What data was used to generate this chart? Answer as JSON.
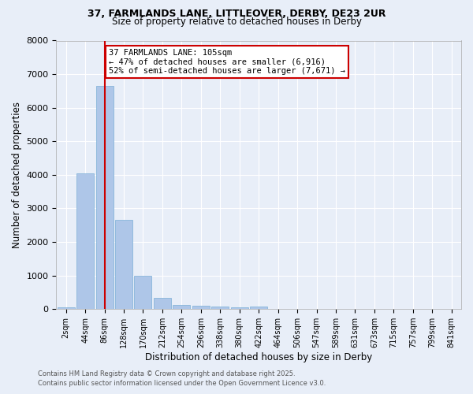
{
  "title1": "37, FARMLANDS LANE, LITTLEOVER, DERBY, DE23 2UR",
  "title2": "Size of property relative to detached houses in Derby",
  "xlabel": "Distribution of detached houses by size in Derby",
  "ylabel": "Number of detached properties",
  "bar_color": "#aec6e8",
  "bar_edge_color": "#7aaed6",
  "background_color": "#e8eef8",
  "grid_color": "#ffffff",
  "categories": [
    "2sqm",
    "44sqm",
    "86sqm",
    "128sqm",
    "170sqm",
    "212sqm",
    "254sqm",
    "296sqm",
    "338sqm",
    "380sqm",
    "422sqm",
    "464sqm",
    "506sqm",
    "547sqm",
    "589sqm",
    "631sqm",
    "673sqm",
    "715sqm",
    "757sqm",
    "799sqm",
    "841sqm"
  ],
  "values": [
    50,
    4050,
    6650,
    2650,
    1000,
    330,
    130,
    100,
    80,
    50,
    80,
    0,
    0,
    0,
    0,
    0,
    0,
    0,
    0,
    0,
    0
  ],
  "ylim": [
    0,
    8000
  ],
  "yticks": [
    0,
    1000,
    2000,
    3000,
    4000,
    5000,
    6000,
    7000,
    8000
  ],
  "property_line_x": 2.0,
  "annotation_text": "37 FARMLANDS LANE: 105sqm\n← 47% of detached houses are smaller (6,916)\n52% of semi-detached houses are larger (7,671) →",
  "annotation_box_color": "#ffffff",
  "annotation_box_edge_color": "#cc0000",
  "red_line_color": "#cc0000",
  "footer_text1": "Contains HM Land Registry data © Crown copyright and database right 2025.",
  "footer_text2": "Contains public sector information licensed under the Open Government Licence v3.0."
}
